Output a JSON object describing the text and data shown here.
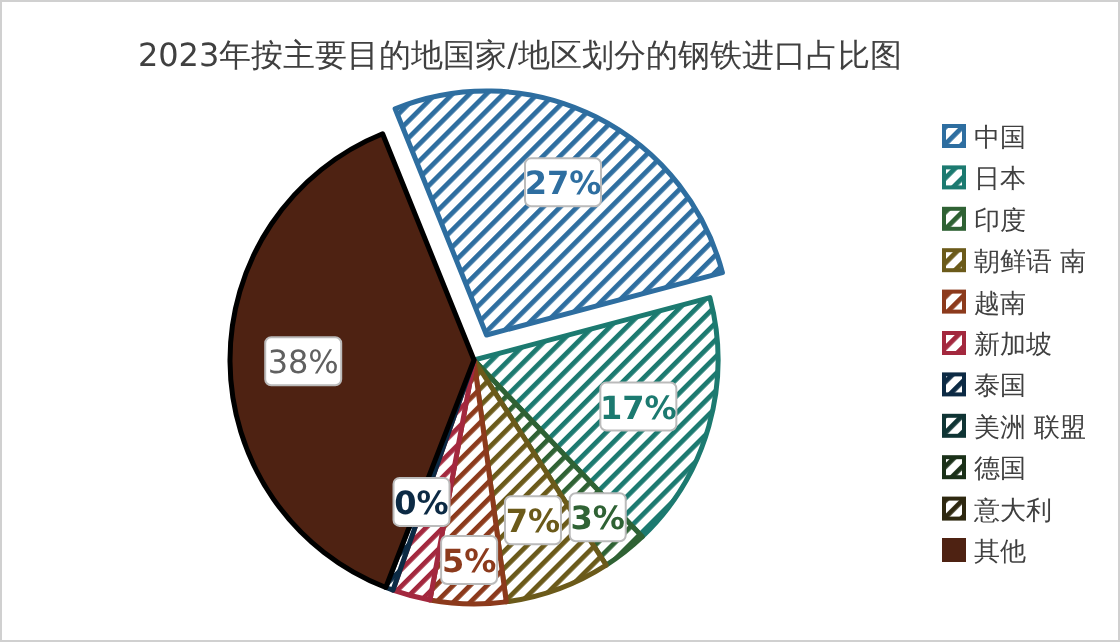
{
  "chart_data": {
    "type": "pie",
    "title": "2023年按主要目的地国家/地区划分的钢铁进口占比图",
    "categories": [
      "中国",
      "日本",
      "印度",
      "朝鲜语 南",
      "越南",
      "新加坡",
      "泰国",
      "美洲 联盟",
      "德国",
      "意大利",
      "其他"
    ],
    "values": [
      27,
      17,
      3,
      7,
      5,
      2.5,
      0.5,
      0,
      0,
      0,
      38
    ],
    "value_labels": [
      "27%",
      "17%",
      "3%",
      "7%",
      "5%",
      null,
      "0%",
      null,
      null,
      null,
      "38%"
    ],
    "colors": [
      "#2e6ea0",
      "#1c7a70",
      "#2f6234",
      "#6b5a1a",
      "#8c3a1c",
      "#a3283e",
      "#0c2a44",
      "#0f3434",
      "#1a3018",
      "#2e2810",
      "#4e2212"
    ],
    "legend": "right"
  }
}
